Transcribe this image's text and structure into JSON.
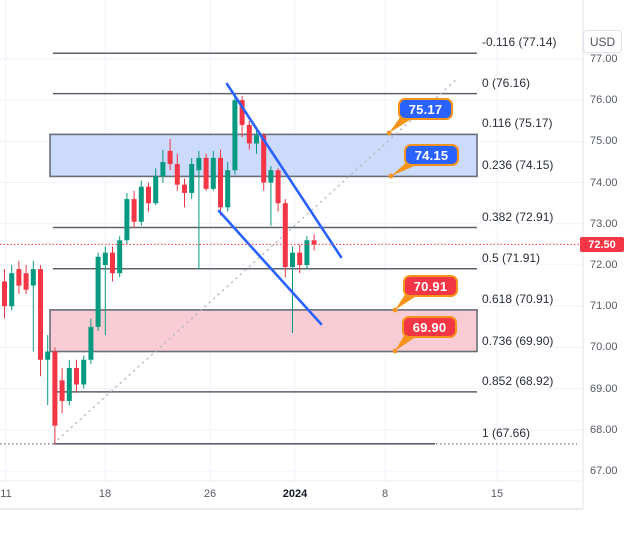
{
  "chart_data": {
    "type": "candlestick",
    "currency": "USD",
    "last_price": "72.50",
    "price_axis_ticks": [
      "77.00",
      "76.00",
      "75.00",
      "74.00",
      "73.00",
      "72.00",
      "71.00",
      "70.00",
      "69.00",
      "68.00",
      "67.00"
    ],
    "time_axis_ticks": [
      {
        "label": "11",
        "bold": false
      },
      {
        "label": "18",
        "bold": false
      },
      {
        "label": "26",
        "bold": false
      },
      {
        "label": "2024",
        "bold": true
      },
      {
        "label": "8",
        "bold": false
      },
      {
        "label": "15",
        "bold": false
      }
    ],
    "fib_levels": [
      {
        "label": "-0.116 (77.14)",
        "price": 77.14,
        "dotted": false
      },
      {
        "label": "0 (76.16)",
        "price": 76.16,
        "dotted": false
      },
      {
        "label": "0.116 (75.17)",
        "price": 75.17,
        "dotted": false
      },
      {
        "label": "0.236 (74.15)",
        "price": 74.15,
        "dotted": false
      },
      {
        "label": "0.382 (72.91)",
        "price": 72.91,
        "dotted": false
      },
      {
        "label": "0.5 (71.91)",
        "price": 71.91,
        "dotted": false
      },
      {
        "label": "0.618 (70.91)",
        "price": 70.91,
        "dotted": false
      },
      {
        "label": "0.736 (69.90)",
        "price": 69.9,
        "dotted": false
      },
      {
        "label": "0.852 (68.92)",
        "price": 68.92,
        "dotted": false
      },
      {
        "label": "1 (67.66)",
        "price": 67.66,
        "dotted": true
      }
    ],
    "zones": [
      {
        "from": 74.15,
        "to": 75.17,
        "fill": "#ccdafb"
      },
      {
        "from": 69.9,
        "to": 70.91,
        "fill": "#f8ccd5"
      }
    ],
    "callouts": [
      {
        "label": "75.17",
        "color": "#2962ff"
      },
      {
        "label": "74.15",
        "color": "#2962ff"
      },
      {
        "label": "70.91",
        "color": "#f23645"
      },
      {
        "label": "69.90",
        "color": "#f23645"
      }
    ],
    "candles": [
      [
        71.6,
        71.9,
        70.7,
        71.0
      ],
      [
        71.0,
        72.0,
        70.9,
        71.8
      ],
      [
        71.9,
        72.1,
        71.3,
        71.5
      ],
      [
        71.8,
        72.0,
        71.3,
        71.4
      ],
      [
        71.5,
        72.1,
        69.9,
        71.9
      ],
      [
        71.9,
        72.0,
        69.3,
        69.7
      ],
      [
        69.7,
        70.3,
        68.6,
        69.9
      ],
      [
        69.9,
        70.0,
        67.66,
        68.1
      ],
      [
        69.2,
        69.5,
        68.4,
        68.7
      ],
      [
        68.7,
        69.7,
        68.6,
        69.5
      ],
      [
        69.5,
        69.7,
        68.9,
        69.1
      ],
      [
        69.1,
        69.8,
        69.0,
        69.7
      ],
      [
        69.7,
        70.7,
        69.6,
        70.5
      ],
      [
        70.5,
        72.3,
        70.4,
        72.2
      ],
      [
        72.0,
        72.45,
        70.3,
        72.3
      ],
      [
        72.3,
        72.45,
        71.6,
        71.8
      ],
      [
        71.8,
        72.7,
        71.7,
        72.6
      ],
      [
        72.6,
        73.75,
        72.5,
        73.6
      ],
      [
        73.6,
        73.8,
        72.9,
        73.05
      ],
      [
        73.05,
        74.05,
        72.95,
        73.9
      ],
      [
        73.9,
        74.0,
        73.3,
        73.5
      ],
      [
        73.5,
        74.35,
        73.45,
        74.15
      ],
      [
        74.15,
        74.8,
        74.0,
        74.5
      ],
      [
        74.77,
        75.06,
        74.3,
        74.45
      ],
      [
        74.45,
        74.7,
        73.8,
        73.95
      ],
      [
        73.95,
        74.1,
        73.4,
        73.75
      ],
      [
        73.75,
        74.6,
        73.6,
        74.45
      ],
      [
        74.3,
        74.77,
        71.9,
        74.6
      ],
      [
        74.6,
        74.7,
        73.8,
        73.85
      ],
      [
        73.85,
        74.77,
        73.8,
        74.6
      ],
      [
        74.6,
        74.8,
        73.2,
        73.4
      ],
      [
        73.4,
        74.5,
        73.3,
        74.3
      ],
      [
        74.3,
        76.16,
        74.2,
        76.0
      ],
      [
        76.0,
        76.1,
        75.1,
        75.4
      ],
      [
        75.4,
        75.5,
        74.8,
        74.95
      ],
      [
        74.95,
        75.3,
        74.7,
        75.15
      ],
      [
        75.15,
        75.2,
        73.8,
        74.0
      ],
      [
        74.0,
        74.4,
        72.95,
        74.3
      ],
      [
        74.3,
        74.35,
        73.3,
        73.5
      ],
      [
        73.5,
        73.6,
        71.7,
        71.95
      ],
      [
        71.95,
        72.45,
        70.35,
        72.3
      ],
      [
        72.3,
        72.5,
        71.8,
        72.0
      ],
      [
        72.0,
        72.7,
        71.9,
        72.6
      ],
      [
        72.6,
        72.75,
        72.35,
        72.5
      ]
    ],
    "colors": {
      "up": "#089981",
      "down": "#f23645",
      "channel": "#2962ff",
      "last_price": "#f23645",
      "callout_border": "#f7931a",
      "fib_line": "#5d616c",
      "grid": "#f0f3fa",
      "dashed_trend": "#b6b9c1"
    }
  }
}
